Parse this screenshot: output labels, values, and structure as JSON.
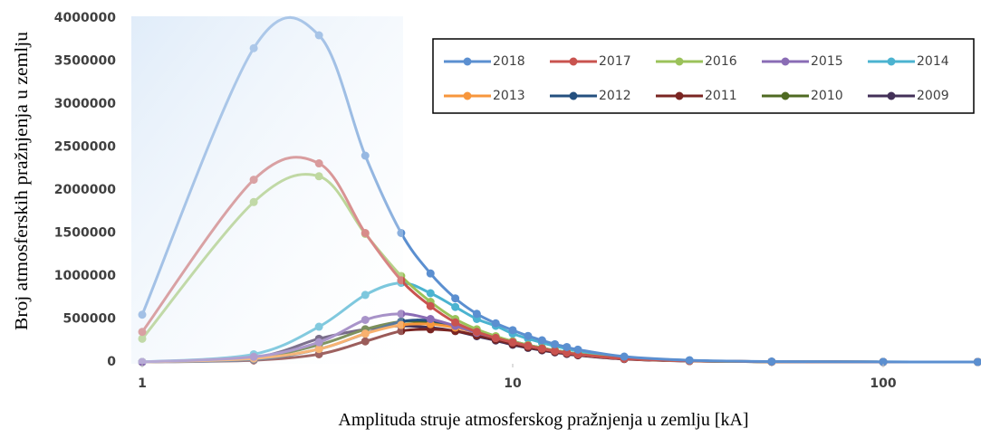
{
  "chart_data": {
    "type": "line",
    "xlabel": "Amplituda struje atmosferskog pražnjenja u zemlju [kA]",
    "ylabel": "Broj atmosferskih pražnjenja u zemlju",
    "x": [
      1,
      2,
      3,
      4,
      5,
      6,
      7,
      8,
      9,
      10,
      11,
      12,
      13,
      14,
      15,
      20,
      30,
      50,
      100,
      180
    ],
    "xlim": [
      1,
      180
    ],
    "xscale": "log",
    "xticks": [
      1,
      10,
      100
    ],
    "ylim": [
      0,
      4000000
    ],
    "yticks": [
      0,
      500000,
      1000000,
      1500000,
      2000000,
      2500000,
      3000000,
      3500000,
      4000000
    ],
    "grid": false,
    "legend": "upper right",
    "series": [
      {
        "name": "2018",
        "color": "#5b8fd0",
        "values": [
          550000,
          3650000,
          3800000,
          2400000,
          1500000,
          1030000,
          740000,
          560000,
          450000,
          370000,
          303000,
          252000,
          207000,
          174000,
          144000,
          63000,
          20000,
          5000,
          1000,
          300
        ]
      },
      {
        "name": "2017",
        "color": "#c9534f",
        "values": [
          350000,
          2120000,
          2310000,
          1500000,
          950000,
          650000,
          460000,
          350000,
          280000,
          230000,
          189000,
          156000,
          129000,
          108000,
          90000,
          39000,
          13000,
          3000,
          500,
          200
        ]
      },
      {
        "name": "2016",
        "color": "#9bc25a",
        "values": [
          270000,
          1860000,
          2160000,
          1490000,
          1000000,
          700000,
          500000,
          380000,
          300000,
          240000,
          197000,
          163000,
          134000,
          113000,
          94000,
          41000,
          13000,
          3000,
          500,
          200
        ]
      },
      {
        "name": "2015",
        "color": "#8a6cb5",
        "values": [
          0,
          60000,
          230000,
          490000,
          560000,
          500000,
          420000,
          340000,
          280000,
          230000,
          189000,
          156000,
          129000,
          108000,
          90000,
          39000,
          13000,
          3000,
          500,
          200
        ]
      },
      {
        "name": "2014",
        "color": "#4bb3d0",
        "values": [
          0,
          90000,
          410000,
          780000,
          920000,
          800000,
          640000,
          500000,
          420000,
          330000,
          271000,
          224000,
          185000,
          155000,
          129000,
          56000,
          18000,
          4000,
          700,
          200
        ]
      },
      {
        "name": "2013",
        "color": "#f7963c",
        "values": [
          0,
          40000,
          150000,
          330000,
          430000,
          440000,
          400000,
          340000,
          280000,
          230000,
          189000,
          156000,
          129000,
          108000,
          90000,
          39000,
          13000,
          3000,
          500,
          200
        ]
      },
      {
        "name": "2012",
        "color": "#24507f",
        "values": [
          0,
          30000,
          150000,
          330000,
          470000,
          480000,
          420000,
          350000,
          290000,
          240000,
          197000,
          163000,
          134000,
          113000,
          94000,
          41000,
          13000,
          3000,
          500,
          200
        ]
      },
      {
        "name": "2011",
        "color": "#7a2522",
        "values": [
          0,
          20000,
          90000,
          240000,
          360000,
          380000,
          360000,
          310000,
          260000,
          210000,
          172000,
          143000,
          118000,
          99000,
          82000,
          36000,
          12000,
          3000,
          400,
          100
        ]
      },
      {
        "name": "2010",
        "color": "#4f6a22",
        "values": [
          0,
          50000,
          200000,
          380000,
          470000,
          460000,
          410000,
          340000,
          280000,
          230000,
          189000,
          156000,
          129000,
          108000,
          90000,
          39000,
          13000,
          3000,
          500,
          200
        ]
      },
      {
        "name": "2009",
        "color": "#433058",
        "values": [
          0,
          50000,
          270000,
          380000,
          420000,
          400000,
          360000,
          300000,
          250000,
          200000,
          164000,
          136000,
          112000,
          94000,
          78000,
          34000,
          11000,
          3000,
          400,
          100
        ]
      }
    ]
  }
}
